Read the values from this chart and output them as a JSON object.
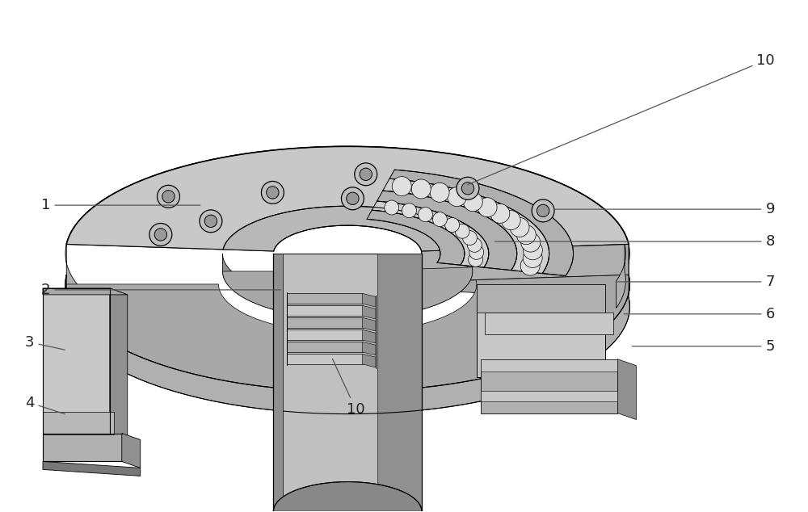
{
  "bg_color": "#ffffff",
  "lc": "#000000",
  "lw": 1.0,
  "colors": {
    "top_face": "#c8c8c8",
    "side_face": "#b0b0b0",
    "dark_face": "#909090",
    "darker": "#787878",
    "rim_face": "#a8a8a8",
    "inner_hub": "#b8b8b8",
    "bearing_light": "#d0d0d0",
    "bearing_mid": "#b0b0b0",
    "bearing_dark": "#909090",
    "ball": "#e0e0e0",
    "cyl_light": "#c0c0c0",
    "cyl_dark": "#888888",
    "base_light": "#c0c0c0",
    "base_dark": "#909090"
  },
  "figsize": [
    10.0,
    6.34
  ],
  "dpi": 100
}
